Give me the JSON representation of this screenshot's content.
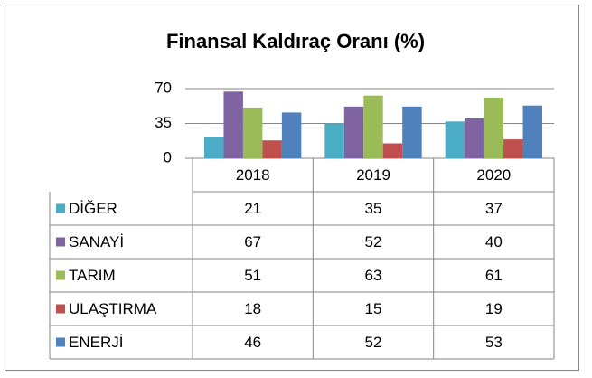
{
  "chart_data": {
    "type": "bar",
    "title": "Finansal Kaldıraç Oranı (%)",
    "categories": [
      "2018",
      "2019",
      "2020"
    ],
    "series": [
      {
        "name": "DİĞER",
        "color": "#4bacc6",
        "values": [
          21,
          35,
          37
        ]
      },
      {
        "name": "SANAYİ",
        "color": "#8064a2",
        "values": [
          67,
          52,
          40
        ]
      },
      {
        "name": "TARIM",
        "color": "#9bbb59",
        "values": [
          51,
          63,
          61
        ]
      },
      {
        "name": "ULAŞTIRMA",
        "color": "#c0504d",
        "values": [
          18,
          15,
          19
        ]
      },
      {
        "name": "ENERJİ",
        "color": "#4f81bd",
        "values": [
          46,
          52,
          53
        ]
      }
    ],
    "ylim": [
      0,
      70
    ],
    "yticks": [
      0,
      35,
      70
    ],
    "grid": true,
    "data_table": true
  }
}
